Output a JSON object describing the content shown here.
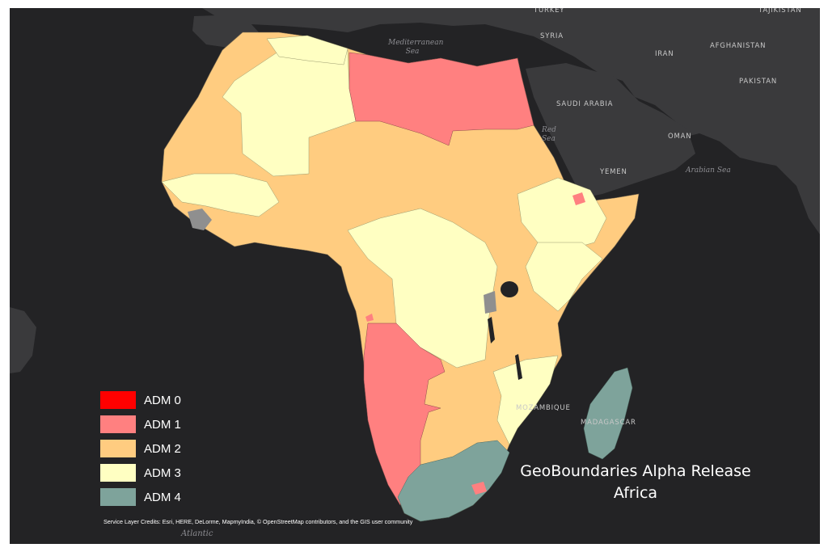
{
  "title": {
    "line1": "GeoBoundaries Alpha Release",
    "line2": "Africa"
  },
  "legend": [
    {
      "label": "ADM 0",
      "color": "#ff0000"
    },
    {
      "label": "ADM 1",
      "color": "#ff8080"
    },
    {
      "label": "ADM 2",
      "color": "#ffcc80"
    },
    {
      "label": "ADM 3",
      "color": "#ffffc2"
    },
    {
      "label": "ADM 4",
      "color": "#7ea39b"
    }
  ],
  "credits": "Service Layer Credits: Esri, HERE, DeLorme, MapmyIndia, © OpenStreetMap contributors, and the GIS user community",
  "basemap_labels": {
    "countries": [
      "TURKEY",
      "TAJIKISTAN",
      "SYRIA",
      "IRAN",
      "AFGHANISTAN",
      "PAKISTAN",
      "SAUDI ARABIA",
      "OMAN",
      "YEMEN",
      "MADAGASCAR",
      "MOZAMBIQUE"
    ],
    "water": [
      "Mediterranean Sea",
      "Red Sea",
      "Arabian Sea",
      "Atlantic"
    ]
  },
  "colors": {
    "background": "#232325",
    "land": "#3a3a3c",
    "border": "#2b2b2d"
  }
}
